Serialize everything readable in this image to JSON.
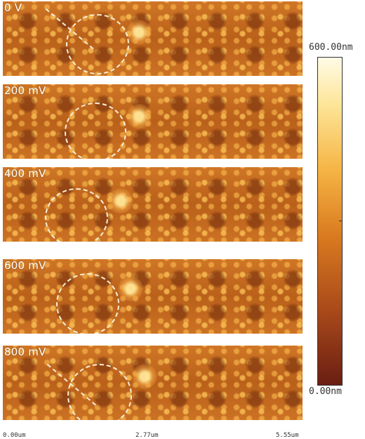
{
  "panels": [
    {
      "label": "0 V"
    },
    {
      "label": "200 mV"
    },
    {
      "label": "400 mV"
    },
    {
      "label": "600 mV"
    },
    {
      "label": "800 mV"
    }
  ],
  "colorbar": {
    "max_label": "600.00nm",
    "min_label": "0.00nm"
  },
  "x_axis": {
    "ticks": [
      "0.00um",
      "2.77um",
      "5.55um"
    ]
  },
  "colors": {
    "surface": "#c46a1f",
    "annotation": "#f7efd8"
  }
}
